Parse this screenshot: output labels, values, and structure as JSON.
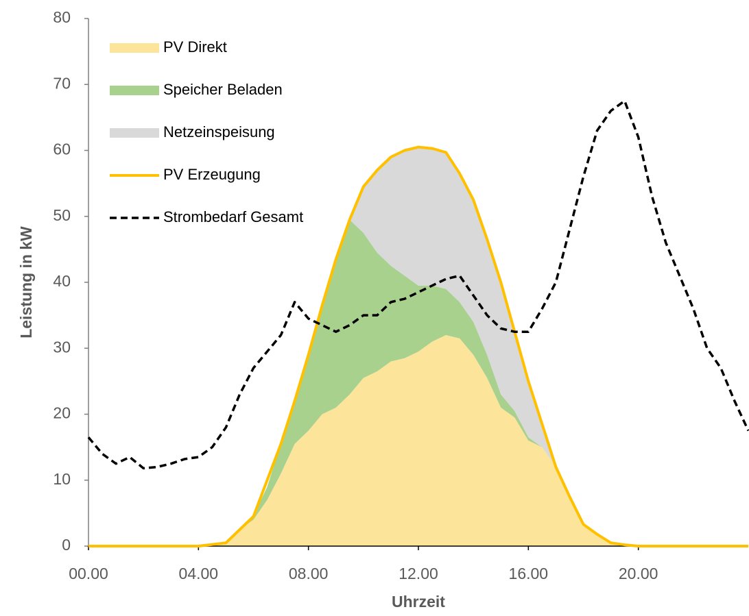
{
  "chart_data": {
    "type": "area",
    "y_label": "Leistung in kW",
    "x_label": "Uhrzeit",
    "xlim": [
      0,
      24
    ],
    "ylim": [
      0,
      80
    ],
    "yticks": [
      0,
      10,
      20,
      30,
      40,
      50,
      60,
      70,
      80
    ],
    "xticks": [
      {
        "value": 0,
        "label": "00.00"
      },
      {
        "value": 4,
        "label": "04.00"
      },
      {
        "value": 8,
        "label": "08.00"
      },
      {
        "value": 12,
        "label": "12.00"
      },
      {
        "value": 16,
        "label": "16.00"
      },
      {
        "value": 20,
        "label": "20.00"
      }
    ],
    "legend": "top-left",
    "x": [
      0,
      0.5,
      1,
      1.5,
      2,
      2.5,
      3,
      3.5,
      4,
      4.5,
      5,
      5.5,
      6,
      6.5,
      7,
      7.5,
      8,
      8.5,
      9,
      9.5,
      10,
      10.5,
      11,
      11.5,
      12,
      12.5,
      13,
      13.5,
      14,
      14.5,
      15,
      15.5,
      16,
      16.5,
      17,
      17.5,
      18,
      18.5,
      19,
      19.5,
      20,
      20.5,
      21,
      21.5,
      22,
      22.5,
      23,
      23.5,
      24
    ],
    "series": [
      {
        "name": "PV Direkt",
        "kind": "stacked-area",
        "color": "#fde49b",
        "values": [
          0,
          0,
          0,
          0,
          0,
          0,
          0,
          0,
          0,
          0.25,
          0.5,
          2.5,
          4,
          7,
          11,
          15.5,
          17.5,
          20,
          21,
          23,
          25.5,
          26.5,
          28,
          28.5,
          29.5,
          31,
          32,
          31.5,
          29,
          25.5,
          21,
          19.5,
          16,
          15,
          12,
          7.5,
          3.3,
          1.8,
          0.5,
          0.2,
          0,
          0,
          0,
          0,
          0,
          0,
          0,
          0,
          0
        ]
      },
      {
        "name": "Speicher Beladen",
        "kind": "stacked-area",
        "color": "#a9d18e",
        "values": [
          0,
          0,
          0,
          0,
          0,
          0,
          0,
          0,
          0,
          0,
          0,
          0,
          0.5,
          2,
          4.5,
          6.5,
          11.5,
          16.5,
          22.5,
          26.5,
          22,
          18,
          14.5,
          12.5,
          10,
          8.5,
          7,
          5.5,
          5,
          3.5,
          2,
          1,
          0.5,
          0,
          0,
          0,
          0,
          0,
          0,
          0,
          0,
          0,
          0,
          0,
          0,
          0,
          0,
          0,
          0
        ]
      },
      {
        "name": "Netzeinspeisung",
        "kind": "stacked-area",
        "color": "#d9d9d9",
        "values": [
          0,
          0,
          0,
          0,
          0,
          0,
          0,
          0,
          0,
          0,
          0,
          0,
          0,
          0,
          0,
          0,
          0,
          0,
          0,
          0,
          7,
          12.5,
          16.5,
          19,
          21,
          20.8,
          20.7,
          19.5,
          18.5,
          17.5,
          17,
          12,
          8.5,
          3.5,
          0,
          0,
          0,
          0,
          0,
          0,
          0,
          0,
          0,
          0,
          0,
          0,
          0,
          0,
          0
        ]
      },
      {
        "name": "PV Erzeugung",
        "kind": "line",
        "color": "#ffc000",
        "values": [
          0,
          0,
          0,
          0,
          0,
          0,
          0,
          0,
          0,
          0.25,
          0.5,
          2.5,
          4.5,
          10,
          15.5,
          22,
          29,
          36.5,
          43.5,
          49.5,
          54.5,
          57,
          59,
          60,
          60.5,
          60.3,
          59.7,
          56.5,
          52.5,
          46.5,
          40,
          32.5,
          25,
          18.5,
          12,
          7.5,
          3.3,
          1.8,
          0.5,
          0.2,
          0,
          0,
          0,
          0,
          0,
          0,
          0,
          0,
          0
        ]
      },
      {
        "name": "Strombedarf Gesamt",
        "kind": "dashed-line",
        "color": "#000000",
        "values": [
          16.5,
          14,
          12.5,
          13.5,
          11.8,
          12,
          12.5,
          13.2,
          13.5,
          15,
          18,
          23,
          27,
          29.5,
          32,
          37,
          34.5,
          33.5,
          32.5,
          33.5,
          35,
          35,
          37,
          37.5,
          38.5,
          39.5,
          40.5,
          41,
          38,
          35,
          33,
          32.5,
          32.5,
          36,
          40,
          48,
          56,
          63,
          66,
          67.5,
          62,
          53,
          46,
          41,
          36,
          30,
          27,
          22,
          17.5
        ]
      }
    ]
  }
}
